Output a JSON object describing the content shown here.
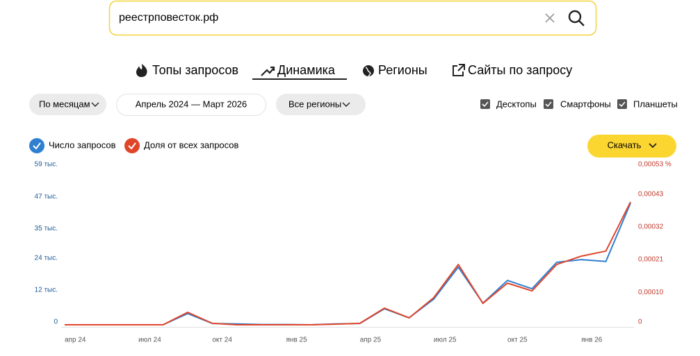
{
  "search": {
    "query": "реестрповесток.рф"
  },
  "tabs": [
    "Топы запросов",
    "Динамика",
    "Регионы",
    "Сайты по запросу"
  ],
  "filters": {
    "period_group": "По месяцам",
    "date_range": "Апрель 2024 — Март 2026",
    "region": "Все регионы"
  },
  "devices": [
    "Десктопы",
    "Смартфоны",
    "Планшеты"
  ],
  "download": "Скачать",
  "chart_data": {
    "type": "line",
    "categories": [
      "апр 24",
      null,
      null,
      "июл 24",
      null,
      null,
      "окт 24",
      null,
      null,
      "янв 25",
      null,
      null,
      "апр 25",
      null,
      null,
      "июл 25",
      null,
      null,
      "окт 25",
      null,
      null,
      "янв 26",
      null,
      null
    ],
    "series": [
      {
        "name": "Число запросов",
        "color": "#2f7fd1",
        "values": [
          0,
          0,
          0,
          0,
          0,
          4200,
          500,
          300,
          100,
          100,
          0,
          300,
          500,
          6000,
          2600,
          9600,
          21600,
          8100,
          16600,
          13500,
          23400,
          24400,
          23700,
          45500
        ]
      },
      {
        "name": "Доля от всех запросов",
        "color": "#e0452a",
        "axis": "y2",
        "values": [
          0,
          0,
          0,
          0,
          0,
          4.2e-05,
          5e-06,
          0,
          0,
          0,
          0,
          2e-06,
          5e-06,
          5.6e-05,
          2.3e-05,
          9.1e-05,
          0.000203,
          7.2e-05,
          0.00014,
          0.000114,
          0.000203,
          0.000231,
          0.000248,
          0.000413
        ]
      }
    ],
    "ylim": [
      0,
      59000
    ],
    "yticks": [
      0,
      {
        "value": 12000,
        "label": "12 тыс."
      },
      {
        "value": 24000,
        "label": "24 тыс."
      },
      {
        "value": 35000,
        "label": "35 тыс."
      },
      {
        "value": 47000,
        "label": "47 тыс."
      },
      {
        "value": 59000,
        "label": "59 тыс."
      }
    ],
    "y2lim": [
      0,
      0.00053
    ],
    "y2ticks": [
      0,
      {
        "value": 0.0001,
        "label": "0,00010"
      },
      {
        "value": 0.00021,
        "label": "0,00021"
      },
      {
        "value": 0.00032,
        "label": "0,00032"
      },
      {
        "value": 0.00043,
        "label": "0,00043"
      },
      {
        "value": 0.00053,
        "label": "0,00053 %"
      }
    ],
    "grid": false
  }
}
